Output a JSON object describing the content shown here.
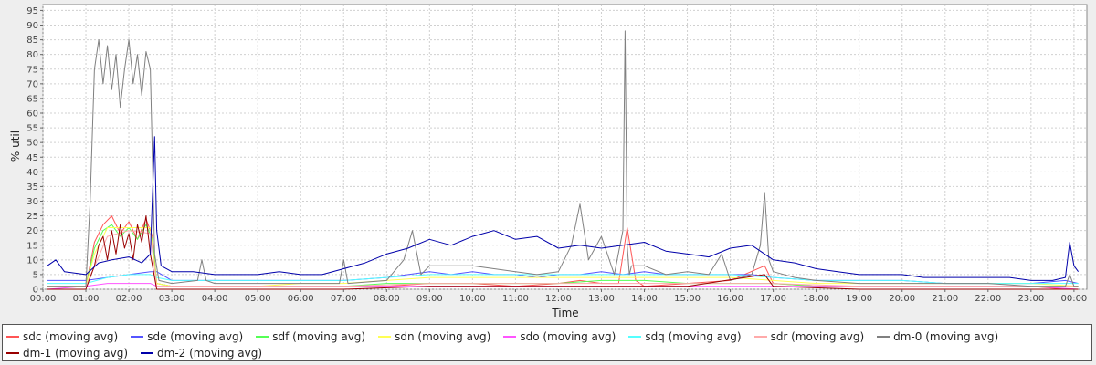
{
  "chart_data": {
    "type": "line",
    "xlabel": "Time",
    "ylabel": "% util",
    "ylim": [
      0,
      97
    ],
    "xlim": [
      0,
      24.3
    ],
    "yticks": [
      0,
      5,
      10,
      15,
      20,
      25,
      30,
      35,
      40,
      45,
      50,
      55,
      60,
      65,
      70,
      75,
      80,
      85,
      90,
      95
    ],
    "xtick_labels": [
      "00:00",
      "01:00",
      "02:00",
      "03:00",
      "04:00",
      "05:00",
      "06:00",
      "07:00",
      "08:00",
      "09:00",
      "10:00",
      "11:00",
      "12:00",
      "13:00",
      "14:00",
      "15:00",
      "16:00",
      "17:00",
      "18:00",
      "19:00",
      "20:00",
      "21:00",
      "22:00",
      "23:00",
      "00:00"
    ],
    "xtick_values": [
      0,
      1,
      2,
      3,
      4,
      5,
      6,
      7,
      8,
      9,
      10,
      11,
      12,
      13,
      14,
      15,
      16,
      17,
      18,
      19,
      20,
      21,
      22,
      23,
      24
    ],
    "grid": true,
    "legend_position": "bottom",
    "series": [
      {
        "name": "sdc (moving avg)",
        "color": "#ff5555",
        "x": [
          0.1,
          0.5,
          1.0,
          1.2,
          1.4,
          1.6,
          1.8,
          2.0,
          2.2,
          2.4,
          2.55,
          2.65,
          3,
          4,
          5,
          6,
          7,
          8,
          9,
          10,
          11,
          12,
          12.5,
          13,
          13.4,
          13.6,
          13.8,
          14,
          15,
          16,
          16.8,
          17,
          18,
          19,
          20,
          21,
          22,
          23,
          23.8,
          24.1
        ],
        "y": [
          1,
          1,
          1,
          16,
          22,
          25,
          19,
          23,
          17,
          24,
          18,
          2,
          1,
          1,
          1,
          1,
          1,
          1,
          2,
          2,
          1,
          2,
          3,
          2,
          2,
          21,
          3,
          1,
          2,
          3,
          8,
          2,
          1,
          1,
          1,
          1,
          1,
          1,
          0,
          0
        ]
      },
      {
        "name": "sde (moving avg)",
        "color": "#5555ff",
        "x": [
          0.1,
          0.5,
          1.0,
          1.5,
          2.0,
          2.5,
          2.65,
          3,
          4,
          5,
          6,
          7,
          8,
          8.5,
          9,
          9.5,
          10,
          10.5,
          11,
          11.5,
          12,
          12.5,
          13,
          13.5,
          14,
          14.5,
          15,
          15.5,
          16,
          16.5,
          17,
          18,
          19,
          20,
          21,
          22,
          23,
          23.8,
          24.1
        ],
        "y": [
          3,
          3,
          3,
          4,
          5,
          6,
          6,
          3,
          3,
          3,
          3,
          3,
          4,
          5,
          6,
          5,
          6,
          5,
          5,
          4,
          5,
          5,
          6,
          5,
          6,
          5,
          5,
          5,
          5,
          5,
          4,
          3,
          3,
          3,
          2,
          2,
          2,
          3,
          2
        ]
      },
      {
        "name": "sdf (moving avg)",
        "color": "#55ff55",
        "x": [
          0.1,
          0.5,
          1.0,
          1.2,
          1.4,
          1.6,
          1.8,
          2.0,
          2.2,
          2.4,
          2.55,
          2.65,
          3,
          4,
          5,
          6,
          7,
          8,
          9,
          10,
          11,
          12,
          13,
          14,
          15,
          16,
          17,
          18,
          19,
          20,
          21,
          22,
          23,
          24.1
        ],
        "y": [
          1,
          1,
          1,
          14,
          20,
          22,
          18,
          21,
          17,
          22,
          17,
          2,
          1,
          1,
          1,
          1,
          1,
          2,
          2,
          2,
          2,
          2,
          3,
          3,
          2,
          2,
          2,
          1,
          1,
          1,
          1,
          1,
          1,
          1
        ]
      },
      {
        "name": "sdn (moving avg)",
        "color": "#ffff55",
        "x": [
          0.1,
          1.0,
          1.2,
          1.5,
          2.0,
          2.5,
          2.65,
          3,
          4,
          5,
          6,
          7,
          8,
          9,
          10,
          11,
          12,
          13,
          14,
          15,
          16,
          17,
          18,
          19,
          20,
          21,
          22,
          23,
          24.1
        ],
        "y": [
          1,
          1,
          12,
          21,
          21,
          21,
          2,
          1,
          1,
          1,
          2,
          2,
          3,
          4,
          4,
          4,
          4,
          4,
          4,
          4,
          4,
          3,
          2,
          2,
          2,
          2,
          2,
          2,
          1
        ]
      },
      {
        "name": "sdo (moving avg)",
        "color": "#ff55ff",
        "x": [
          0.1,
          1.0,
          1.5,
          2.0,
          2.5,
          2.65,
          3,
          5,
          7,
          9,
          11,
          13,
          15,
          17,
          19,
          21,
          23,
          24.1
        ],
        "y": [
          0,
          1,
          2,
          2,
          2,
          1,
          1,
          1,
          1,
          1,
          1,
          1,
          1,
          1,
          1,
          1,
          1,
          0
        ]
      },
      {
        "name": "sdq (moving avg)",
        "color": "#55ffff",
        "x": [
          0.1,
          0.5,
          1.0,
          1.5,
          2.0,
          2.5,
          2.65,
          3,
          4,
          5,
          6,
          7,
          8,
          9,
          10,
          11,
          12,
          13,
          14,
          15,
          16,
          17,
          18,
          19,
          20,
          21,
          22,
          23,
          24.1
        ],
        "y": [
          2,
          2,
          2,
          4,
          5,
          5,
          4,
          3,
          3,
          3,
          3,
          3,
          4,
          5,
          5,
          5,
          5,
          5,
          5,
          5,
          5,
          4,
          3,
          3,
          3,
          2,
          2,
          2,
          2
        ]
      },
      {
        "name": "sdr (moving avg)",
        "color": "#ffaaaa",
        "x": [
          0.1,
          1.0,
          1.5,
          2.0,
          2.5,
          2.65,
          3,
          5,
          7,
          9,
          11,
          13,
          15,
          17,
          19,
          21,
          23,
          24.1
        ],
        "y": [
          1,
          1,
          18,
          20,
          19,
          1,
          1,
          1,
          1,
          2,
          2,
          2,
          2,
          2,
          1,
          1,
          1,
          1
        ]
      },
      {
        "name": "dm-0 (moving avg)",
        "color": "#808080",
        "x": [
          0.1,
          0.6,
          1.0,
          1.1,
          1.2,
          1.3,
          1.4,
          1.5,
          1.6,
          1.7,
          1.8,
          1.9,
          2.0,
          2.1,
          2.2,
          2.3,
          2.4,
          2.5,
          2.6,
          2.7,
          3,
          3.6,
          3.7,
          3.8,
          4,
          5,
          6,
          6.9,
          7.0,
          7.1,
          8,
          8.4,
          8.6,
          8.8,
          9,
          10,
          11,
          11.5,
          12,
          12.3,
          12.5,
          12.7,
          13,
          13.3,
          13.5,
          13.55,
          13.6,
          13.65,
          13.7,
          14,
          14.5,
          15,
          15.5,
          15.8,
          16,
          16.5,
          16.7,
          16.8,
          16.9,
          17,
          17.5,
          18,
          19,
          20,
          21,
          22,
          23,
          23.8,
          23.9,
          24,
          24.1
        ],
        "y": [
          1,
          1,
          1,
          30,
          75,
          85,
          70,
          83,
          68,
          80,
          62,
          75,
          85,
          70,
          80,
          66,
          81,
          75,
          12,
          3,
          2,
          3,
          10,
          3,
          2,
          2,
          2,
          2,
          10,
          2,
          3,
          10,
          20,
          5,
          8,
          8,
          6,
          5,
          6,
          15,
          29,
          10,
          18,
          5,
          20,
          88,
          15,
          5,
          8,
          8,
          5,
          6,
          5,
          12,
          3,
          5,
          15,
          33,
          10,
          6,
          4,
          3,
          2,
          2,
          2,
          2,
          1,
          1,
          5,
          1,
          1
        ]
      },
      {
        "name": "dm-1 (moving avg)",
        "color": "#990000",
        "x": [
          0.1,
          1.0,
          1.2,
          1.3,
          1.4,
          1.5,
          1.6,
          1.7,
          1.8,
          1.9,
          2.0,
          2.1,
          2.2,
          2.3,
          2.4,
          2.5,
          2.65,
          3,
          5,
          7,
          9,
          11,
          13,
          15,
          16.8,
          17,
          19,
          21,
          23,
          24.1
        ],
        "y": [
          0,
          0,
          8,
          15,
          18,
          10,
          20,
          12,
          22,
          14,
          19,
          10,
          22,
          16,
          25,
          12,
          0,
          0,
          0,
          0,
          1,
          1,
          1,
          1,
          5,
          1,
          0,
          0,
          0,
          0
        ]
      },
      {
        "name": "dm-2 (moving avg)",
        "color": "#0000aa",
        "x": [
          0.1,
          0.3,
          0.5,
          1.0,
          1.3,
          1.6,
          2.0,
          2.3,
          2.5,
          2.6,
          2.65,
          2.75,
          3,
          3.5,
          4,
          4.5,
          5,
          5.5,
          6,
          6.5,
          7,
          7.5,
          8,
          8.5,
          9,
          9.5,
          10,
          10.5,
          11,
          11.5,
          12,
          12.5,
          13,
          13.5,
          14,
          14.5,
          15,
          15.5,
          16,
          16.5,
          17,
          17.5,
          18,
          18.5,
          19,
          19.5,
          20,
          20.5,
          21,
          21.5,
          22,
          22.5,
          23,
          23.5,
          23.8,
          23.9,
          24,
          24.1
        ],
        "y": [
          8,
          10,
          6,
          5,
          9,
          10,
          11,
          9,
          12,
          52,
          20,
          8,
          6,
          6,
          5,
          5,
          5,
          6,
          5,
          5,
          7,
          9,
          12,
          14,
          17,
          15,
          18,
          20,
          17,
          18,
          14,
          15,
          14,
          15,
          16,
          13,
          12,
          11,
          14,
          15,
          10,
          9,
          7,
          6,
          5,
          5,
          5,
          4,
          4,
          4,
          4,
          4,
          3,
          3,
          4,
          16,
          8,
          6
        ]
      }
    ]
  }
}
